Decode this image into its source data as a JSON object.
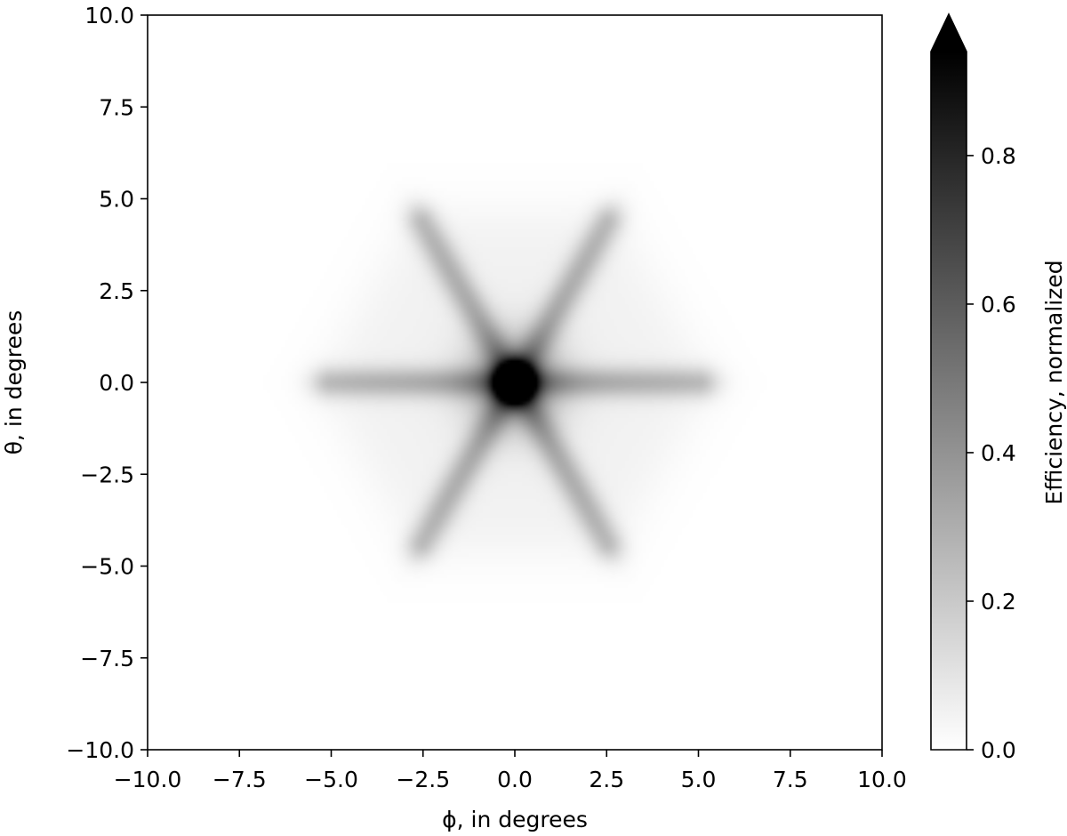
{
  "chart_data": {
    "type": "heatmap",
    "xlabel": "ϕ, in degrees",
    "ylabel": "θ, in degrees",
    "xlim": [
      -10,
      10
    ],
    "ylim": [
      -10,
      10
    ],
    "xticks": [
      "−10.0",
      "−7.5",
      "−5.0",
      "−2.5",
      "0.0",
      "2.5",
      "5.0",
      "7.5",
      "10.0"
    ],
    "yticks": [
      "−10.0",
      "−7.5",
      "−5.0",
      "−2.5",
      "0.0",
      "2.5",
      "5.0",
      "7.5",
      "10.0"
    ],
    "xtick_values": [
      -10,
      -7.5,
      -5,
      -2.5,
      0,
      2.5,
      5,
      7.5,
      10
    ],
    "ytick_values": [
      -10,
      -7.5,
      -5,
      -2.5,
      0,
      2.5,
      5,
      7.5,
      10
    ],
    "colormap": "gray_r",
    "peak": {
      "phi": 0,
      "theta": 0
    },
    "grid": false,
    "colorbar": {
      "label": "Efficiency, normalized",
      "range": [
        0,
        0.94
      ],
      "extend": "max",
      "ticks": [
        "0.0",
        "0.2",
        "0.4",
        "0.6",
        "0.8"
      ],
      "tick_values": [
        0,
        0.2,
        0.4,
        0.6,
        0.8
      ]
    }
  }
}
